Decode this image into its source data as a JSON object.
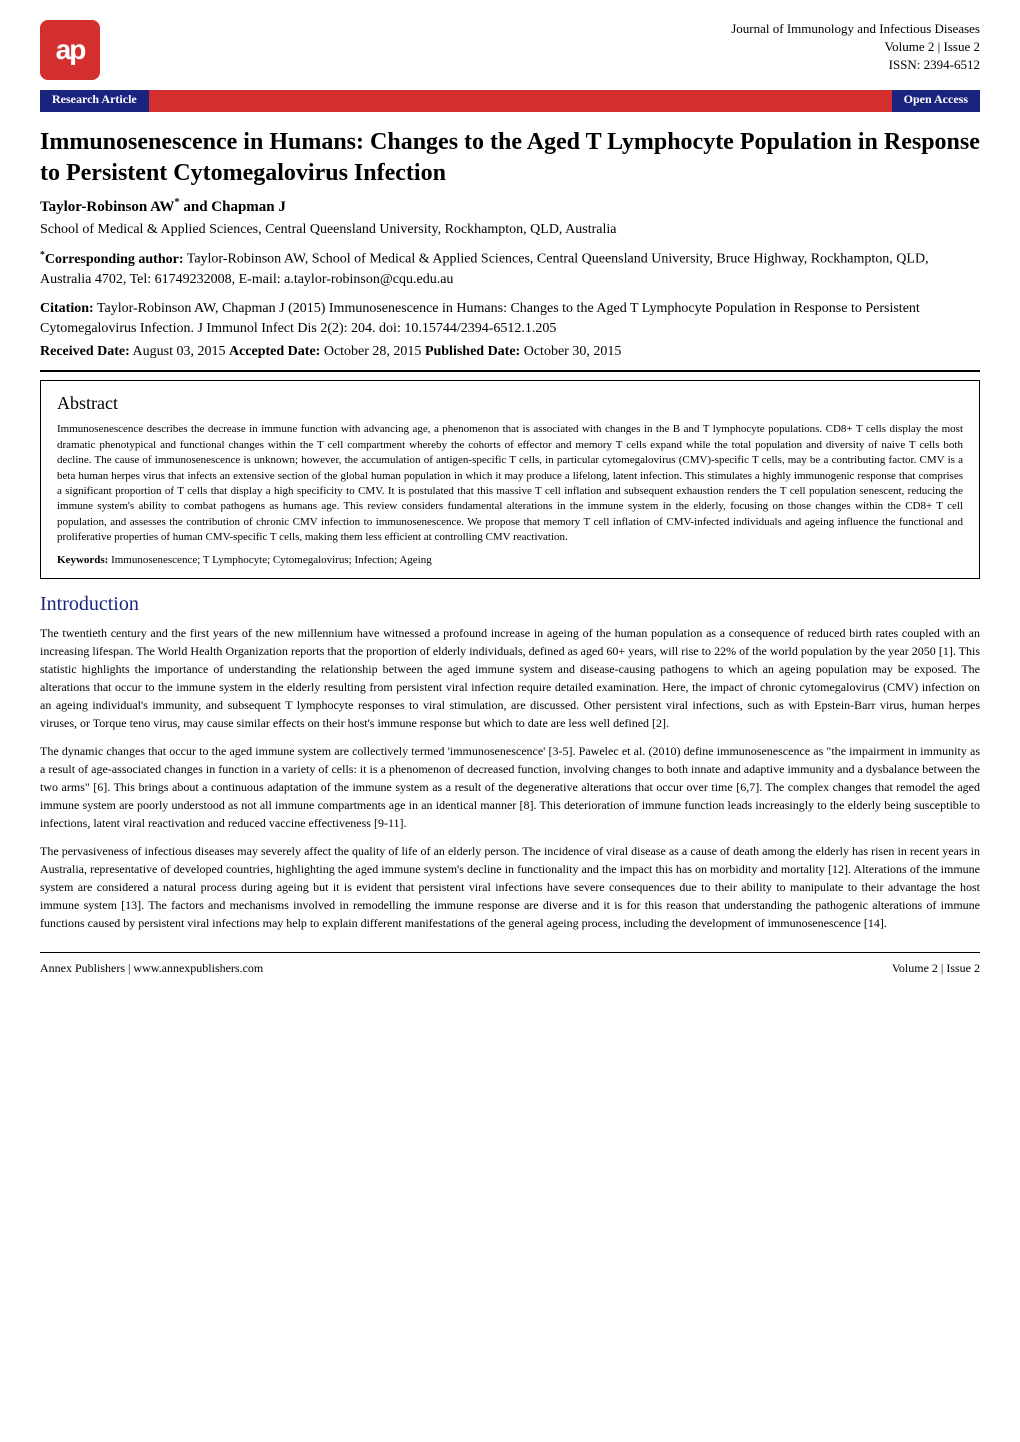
{
  "header": {
    "logo_text": "ap",
    "journal_name": "Journal of Immunology and Infectious Diseases",
    "volume_issue": "Volume 2 | Issue 2",
    "issn": "ISSN: 2394-6512",
    "article_type": "Research Article",
    "access_type": "Open Access"
  },
  "article": {
    "title": "Immunosenescence in Humans: Changes to the Aged T Lymphocyte Population in Response to Persistent Cytomegalovirus Infection",
    "authors": "Taylor-Robinson AW* and Chapman J",
    "affiliation": "School of Medical & Applied Sciences, Central Queensland University, Rockhampton, QLD, Australia",
    "corresponding_label": "*Corresponding author:",
    "corresponding_text": " Taylor-Robinson AW, School of Medical & Applied Sciences, Central Queensland University, Bruce Highway, Rockhampton, QLD, Australia 4702, Tel: 61749232008, E-mail: a.taylor-robinson@cqu.edu.au",
    "citation_label": "Citation:",
    "citation_text": " Taylor-Robinson AW, Chapman J (2015) Immunosenescence in Humans: Changes to the Aged T Lymphocyte Population in Response to Persistent Cytomegalovirus Infection. J Immunol Infect Dis 2(2): 204. doi: 10.15744/2394-6512.1.205",
    "received_label": "Received Date:",
    "received_date": " August 03, 2015 ",
    "accepted_label": "Accepted Date:",
    "accepted_date": " October 28, 2015 ",
    "published_label": "Published Date:",
    "published_date": " October 30, 2015"
  },
  "abstract": {
    "heading": "Abstract",
    "body": "Immunosenescence describes the decrease in immune function with advancing age, a phenomenon that is associated with changes in the B and T lymphocyte populations. CD8+ T cells display the most dramatic phenotypical and functional changes within the T cell compartment whereby the cohorts of effector and memory T cells expand while the total population and diversity of naive T cells both decline. The cause of immunosenescence is unknown; however, the accumulation of antigen-specific T cells, in particular cytomegalovirus (CMV)-specific T cells, may be a contributing factor. CMV is a beta human herpes virus that infects an extensive section of the global human population in which it may produce a lifelong, latent infection. This stimulates a highly immunogenic response that comprises a significant proportion of T cells that display a high specificity to CMV. It is postulated that this massive T cell inflation and subsequent exhaustion renders the T cell population senescent, reducing the immune system's ability to combat pathogens as humans age. This review considers fundamental alterations in the immune system in the elderly, focusing on those changes within the CD8+ T cell population, and assesses the contribution of chronic CMV infection to immunosenescence. We propose that memory T cell inflation of CMV-infected individuals and ageing influence the functional and proliferative properties of human CMV-specific T cells, making them less efficient at controlling CMV reactivation.",
    "keywords_label": "Keywords:",
    "keywords_text": " Immunosenescence; T Lymphocyte; Cytomegalovirus; Infection; Ageing"
  },
  "intro": {
    "heading": "Introduction",
    "p1": "The twentieth century and the first years of the new millennium have witnessed a profound increase in ageing of the human population as a consequence of reduced birth rates coupled with an increasing lifespan. The World Health Organization reports that the proportion of elderly individuals, defined as aged 60+ years, will rise to 22% of the world population by the year 2050 [1]. This statistic highlights the importance of understanding the relationship between the aged immune system and disease-causing pathogens to which an ageing population may be exposed. The alterations that occur to the immune system in the elderly resulting from persistent viral infection require detailed examination. Here, the impact of chronic cytomegalovirus (CMV) infection on an ageing individual's immunity, and subsequent T lymphocyte responses to viral stimulation, are discussed. Other persistent viral infections, such as with Epstein-Barr virus, human herpes viruses, or Torque teno virus, may cause similar effects on their host's immune response but which to date are less well defined [2].",
    "p2": "The dynamic changes that occur to the aged immune system are collectively termed 'immunosenescence' [3-5]. Pawelec et al. (2010) define immunosenescence as \"the impairment in immunity as a result of age-associated changes in function in a variety of cells: it is a phenomenon of decreased function, involving changes to both innate and adaptive immunity and a dysbalance between the two arms\" [6]. This brings about a continuous adaptation of the immune system as a result of the degenerative alterations that occur over time [6,7]. The complex changes that remodel the aged immune system are poorly understood as not all immune compartments age in an identical manner [8]. This deterioration of immune function leads increasingly to the elderly being susceptible to infections, latent viral reactivation and reduced vaccine effectiveness [9-11].",
    "p3": "The pervasiveness of infectious diseases may severely affect the quality of life of an elderly person. The incidence of viral disease as a cause of death among the elderly has risen in recent years in Australia, representative of developed countries, highlighting the aged immune system's decline in functionality and the impact this has on morbidity and mortality [12]. Alterations of the immune system are considered a natural process during ageing but it is evident that persistent viral infections have severe consequences due to their ability to manipulate to their advantage the host immune system [13]. The factors and mechanisms involved in remodelling the immune response are diverse and it is for this reason that understanding the pathogenic alterations of immune functions caused by persistent viral infections may help to explain different manifestations of the general ageing process, including the development of immunosenescence [14]."
  },
  "footer": {
    "publisher": "Annex Publishers | www.annexpublishers.com",
    "volume_issue": "Volume 2 | Issue 2"
  },
  "colors": {
    "logo_bg": "#d32f2f",
    "banner_blue": "#1a237e",
    "banner_red": "#d32f2f",
    "heading_blue": "#1a237e",
    "text": "#000000",
    "background": "#ffffff"
  }
}
